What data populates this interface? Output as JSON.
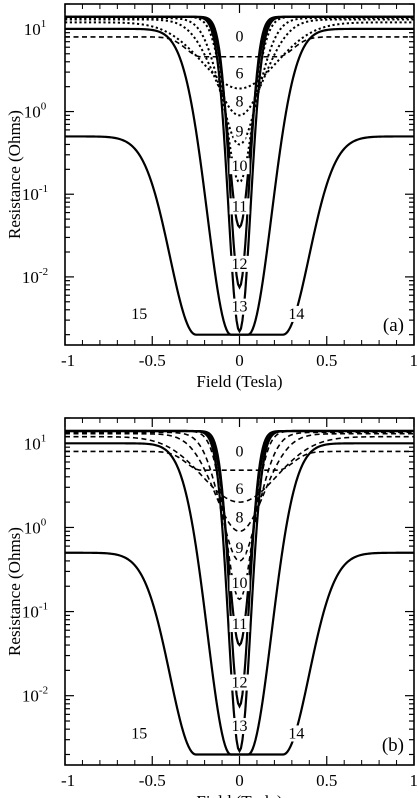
{
  "chart_data": [
    {
      "panel": "(a)",
      "type": "line",
      "xlabel": "Field  (Tesla)",
      "ylabel": "Resistance  (Ohms)",
      "xlim": [
        -1,
        1
      ],
      "ylim": [
        0.0015,
        20
      ],
      "yscale": "log",
      "xticks": [
        "-1",
        "-0.5",
        "0",
        "0.5",
        "1"
      ],
      "yticks": [
        {
          "base": "10",
          "exp": "1"
        },
        {
          "base": "10",
          "exp": "0"
        },
        {
          "base": "10",
          "exp": "-1"
        },
        {
          "base": "10",
          "exp": "-2"
        }
      ],
      "series": [
        {
          "name": "0",
          "style": "dashed",
          "min": 4.6,
          "max": 8.0,
          "width": 0.8,
          "shape": "step"
        },
        {
          "name": "6",
          "style": "dotted",
          "min": 1.9,
          "max": 12.0,
          "width": 0.3
        },
        {
          "name": "8",
          "style": "dotted",
          "min": 0.9,
          "max": 13.0,
          "width": 0.2
        },
        {
          "name": "9",
          "style": "dotted",
          "min": 0.4,
          "max": 13.5,
          "width": 0.15
        },
        {
          "name": "10",
          "style": "dotted",
          "min": 0.14,
          "max": 14.0,
          "width": 0.11
        },
        {
          "name": "11",
          "style": "solid",
          "min": 0.04,
          "max": 14.0,
          "width": 0.09
        },
        {
          "name": "12",
          "style": "solid",
          "min": 0.0075,
          "max": 14.0,
          "width": 0.08
        },
        {
          "name": "13",
          "style": "solid",
          "min": 0.0022,
          "max": 14.0,
          "width": 0.09
        },
        {
          "name": "14",
          "style": "solid",
          "min": 0.002,
          "max": 10.0,
          "width": 0.19,
          "flat": 0.05
        },
        {
          "name": "15",
          "style": "solid",
          "min": 0.002,
          "max": 0.5,
          "width": 0.21,
          "flat": 0.25
        }
      ]
    },
    {
      "panel": "(b)",
      "type": "line",
      "xlabel": "Field (Tesla)",
      "ylabel": "Resistance (Ohms)",
      "xlim": [
        -1,
        1
      ],
      "ylim": [
        0.0015,
        20
      ],
      "yscale": "log",
      "xticks": [
        "-1",
        "-0.5",
        "0",
        "0.5",
        "1"
      ],
      "yticks": [
        {
          "base": "10",
          "exp": "1"
        },
        {
          "base": "10",
          "exp": "0"
        },
        {
          "base": "10",
          "exp": "-1"
        },
        {
          "base": "10",
          "exp": "-2"
        }
      ],
      "series": [
        {
          "name": "0",
          "style": "dashed",
          "min": 4.8,
          "max": 8.0,
          "width": 0.8,
          "shape": "step"
        },
        {
          "name": "6",
          "style": "dashed",
          "min": 2.0,
          "max": 12.0,
          "width": 0.3
        },
        {
          "name": "8",
          "style": "dashed",
          "min": 0.9,
          "max": 13.0,
          "width": 0.2
        },
        {
          "name": "9",
          "style": "dashed",
          "min": 0.4,
          "max": 13.5,
          "width": 0.15
        },
        {
          "name": "10",
          "style": "dashed",
          "min": 0.14,
          "max": 14.0,
          "width": 0.11
        },
        {
          "name": "11",
          "style": "solid",
          "min": 0.04,
          "max": 14.0,
          "width": 0.09
        },
        {
          "name": "12",
          "style": "solid",
          "min": 0.0075,
          "max": 14.0,
          "width": 0.08
        },
        {
          "name": "13",
          "style": "solid",
          "min": 0.0022,
          "max": 14.0,
          "width": 0.09
        },
        {
          "name": "14",
          "style": "solid",
          "min": 0.002,
          "max": 10.0,
          "width": 0.19,
          "flat": 0.05
        },
        {
          "name": "15",
          "style": "solid",
          "min": 0.002,
          "max": 0.5,
          "width": 0.21,
          "flat": 0.25
        }
      ]
    }
  ]
}
